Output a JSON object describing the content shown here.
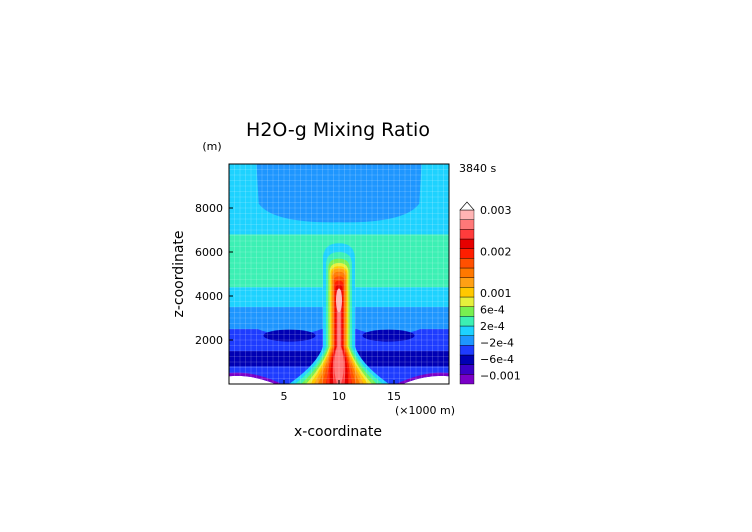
{
  "chart_data": {
    "type": "heatmap",
    "title": "H2O-g Mixing Ratio",
    "time_label": "3840 s",
    "xlabel": "x-coordinate",
    "ylabel": "z-coordinate",
    "x_unit": "(×1000 m)",
    "y_unit": "(m)",
    "xlim": [
      0,
      20
    ],
    "ylim": [
      0,
      10000
    ],
    "x_ticks": [
      5,
      10,
      15
    ],
    "y_ticks": [
      2000,
      4000,
      6000,
      8000
    ],
    "grid": true,
    "colorbar": {
      "position": "right",
      "labels": [
        {
          "text": "0.003",
          "value": 0.003
        },
        {
          "text": "0.002",
          "value": 0.002
        },
        {
          "text": "0.001",
          "value": 0.001
        },
        {
          "text": "6e-4",
          "value": 0.0006
        },
        {
          "text": "2e-4",
          "value": 0.0002
        },
        {
          "text": "−2e-4",
          "value": -0.0002
        },
        {
          "text": "−6e-4",
          "value": -0.0006
        },
        {
          "text": "−0.001",
          "value": -0.001
        }
      ],
      "colors": [
        "#7a00c8",
        "#3a00c8",
        "#0000b4",
        "#1e3cff",
        "#1e96ff",
        "#1ed2ff",
        "#3cf0b4",
        "#78f050",
        "#e6f03c",
        "#ffc800",
        "#ffa014",
        "#ff7800",
        "#ff5000",
        "#ff1e00",
        "#e60000",
        "#ff3c3c",
        "#ff7878",
        "#ffb4b4"
      ]
    },
    "field": {
      "base_bands": [
        {
          "z_from": 0,
          "z_to": 800,
          "level": 3
        },
        {
          "z_from": 800,
          "z_to": 1500,
          "level": 2
        },
        {
          "z_from": 1500,
          "z_to": 2500,
          "level": 3
        },
        {
          "z_from": 2500,
          "z_to": 3500,
          "level": 4
        },
        {
          "z_from": 3500,
          "z_to": 4400,
          "level": 5
        },
        {
          "z_from": 4400,
          "z_to": 6800,
          "level": 6
        },
        {
          "z_from": 6800,
          "z_to": 10000,
          "level": 5
        }
      ],
      "plume_core_x": 10,
      "plume_top_z": 5500,
      "plume_max_z": 3800
    }
  }
}
